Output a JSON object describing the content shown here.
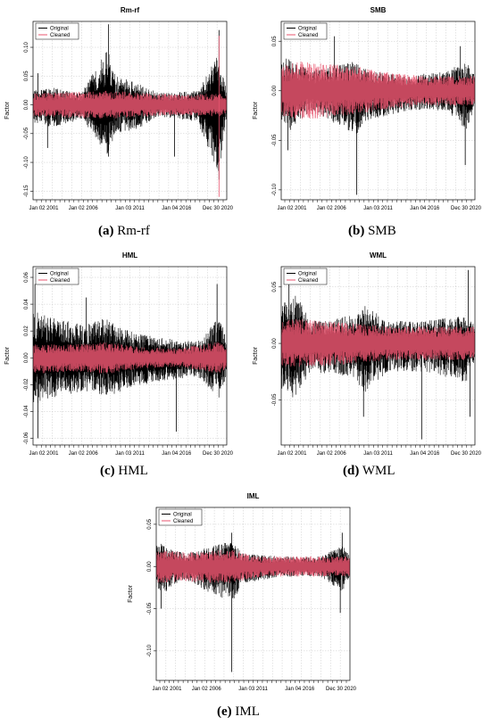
{
  "figure": {
    "legend": {
      "original": "Original",
      "cleaned": "Cleaned"
    },
    "captions": [
      {
        "letter": "(a)",
        "text": "Rm-rf"
      },
      {
        "letter": "(b)",
        "text": "SMB"
      },
      {
        "letter": "(c)",
        "text": "HML"
      },
      {
        "letter": "(d)",
        "text": "WML"
      },
      {
        "letter": "(e)",
        "text": "IML"
      }
    ]
  },
  "chart_data": [
    {
      "type": "line",
      "title": "Rm-rf",
      "ylabel": "Factor",
      "xlabel": "",
      "x_tick_labels": [
        "Jan 02 2001",
        "Jan 02 2006",
        "Jan 03 2011",
        "Jan 04 2016",
        "Dec 30 2020"
      ],
      "y_ticks": [
        0.1,
        0.05,
        0.0,
        -0.05,
        -0.1,
        -0.15
      ],
      "y_tick_labels": [
        "0.10",
        "0.05",
        "0.00",
        "-0.05",
        "-0.10",
        "-0.15"
      ],
      "ylim": [
        -0.165,
        0.145
      ],
      "xlim": [
        2001,
        2021
      ],
      "grid": true,
      "legend": "top-left",
      "series": [
        {
          "name": "Original",
          "color": "#000000",
          "envelope": [
            [
              2001,
              0.025,
              -0.03
            ],
            [
              2003,
              0.03,
              -0.04
            ],
            [
              2006,
              0.02,
              -0.025
            ],
            [
              2008.7,
              0.1,
              -0.09
            ],
            [
              2009.5,
              0.05,
              -0.05
            ],
            [
              2011.5,
              0.04,
              -0.045
            ],
            [
              2014,
              0.02,
              -0.02
            ],
            [
              2018,
              0.025,
              -0.03
            ],
            [
              2020.2,
              0.09,
              -0.12
            ],
            [
              2021,
              0.02,
              -0.02
            ]
          ],
          "spikes": [
            [
              2008.8,
              0.14
            ],
            [
              2008.8,
              -0.09
            ],
            [
              2020.2,
              0.13
            ],
            [
              2020.2,
              -0.13
            ],
            [
              2001.5,
              0.055
            ],
            [
              2002.5,
              -0.075
            ],
            [
              2015.6,
              -0.09
            ]
          ]
        },
        {
          "name": "Cleaned",
          "color": "#e8556f",
          "envelope": [
            [
              2001,
              0.02,
              -0.02
            ],
            [
              2004,
              0.022,
              -0.022
            ],
            [
              2008.7,
              0.025,
              -0.025
            ],
            [
              2011.5,
              0.022,
              -0.022
            ],
            [
              2016,
              0.018,
              -0.018
            ],
            [
              2020.2,
              0.02,
              -0.02
            ],
            [
              2021,
              0.018,
              -0.018
            ]
          ],
          "spikes": [
            [
              2020.2,
              -0.16
            ],
            [
              2020.2,
              0.12
            ]
          ]
        }
      ]
    },
    {
      "type": "line",
      "title": "SMB",
      "ylabel": "Factor",
      "xlabel": "",
      "x_tick_labels": [
        "Jan 02 2001",
        "Jan 02 2006",
        "Jan 03 2011",
        "Jan 04 2016",
        "Dec 30 2020"
      ],
      "y_ticks": [
        0.05,
        0.0,
        -0.05,
        -0.1
      ],
      "y_tick_labels": [
        "0.05",
        "0.00",
        "-0.05",
        "-0.10"
      ],
      "ylim": [
        -0.11,
        0.07
      ],
      "xlim": [
        2001,
        2021
      ],
      "grid": true,
      "legend": "top-left",
      "series": [
        {
          "name": "Original",
          "color": "#000000",
          "envelope": [
            [
              2001,
              0.03,
              -0.03
            ],
            [
              2002,
              0.035,
              -0.04
            ],
            [
              2004,
              0.02,
              -0.02
            ],
            [
              2008.7,
              0.03,
              -0.045
            ],
            [
              2010,
              0.02,
              -0.03
            ],
            [
              2014,
              0.015,
              -0.02
            ],
            [
              2018,
              0.02,
              -0.02
            ],
            [
              2020.2,
              0.03,
              -0.04
            ],
            [
              2021,
              0.015,
              -0.015
            ]
          ],
          "spikes": [
            [
              2008.8,
              -0.105
            ],
            [
              2001.7,
              -0.06
            ],
            [
              2020,
              -0.075
            ],
            [
              2006.5,
              0.055
            ],
            [
              2019.5,
              0.045
            ]
          ]
        },
        {
          "name": "Cleaned",
          "color": "#e8556f",
          "envelope": [
            [
              2001,
              0.025,
              -0.025
            ],
            [
              2003,
              0.03,
              -0.03
            ],
            [
              2008.7,
              0.025,
              -0.025
            ],
            [
              2011,
              0.02,
              -0.02
            ],
            [
              2016,
              0.015,
              -0.015
            ],
            [
              2021,
              0.015,
              -0.015
            ]
          ],
          "spikes": []
        }
      ]
    },
    {
      "type": "line",
      "title": "HML",
      "ylabel": "Factor",
      "xlabel": "",
      "x_tick_labels": [
        "Jan 02 2001",
        "Jan 02 2006",
        "Jan 03 2011",
        "Jan 04 2016",
        "Dec 30 2020"
      ],
      "y_ticks": [
        0.06,
        0.04,
        0.02,
        0.0,
        -0.02,
        -0.04,
        -0.06
      ],
      "y_tick_labels": [
        "0.06",
        "0.04",
        "0.02",
        "0.00",
        "-0.02",
        "-0.04",
        "-0.06"
      ],
      "ylim": [
        -0.065,
        0.068
      ],
      "xlim": [
        2001,
        2021
      ],
      "grid": true,
      "legend": "top-left",
      "series": [
        {
          "name": "Original",
          "color": "#000000",
          "envelope": [
            [
              2001,
              0.035,
              -0.035
            ],
            [
              2003,
              0.03,
              -0.03
            ],
            [
              2006,
              0.025,
              -0.025
            ],
            [
              2008.7,
              0.03,
              -0.03
            ],
            [
              2011,
              0.02,
              -0.022
            ],
            [
              2014,
              0.015,
              -0.018
            ],
            [
              2018,
              0.012,
              -0.014
            ],
            [
              2020.2,
              0.03,
              -0.03
            ],
            [
              2021,
              0.015,
              -0.015
            ]
          ],
          "spikes": [
            [
              2001.5,
              -0.06
            ],
            [
              2001.2,
              0.055
            ],
            [
              2020,
              0.055
            ],
            [
              2015.8,
              -0.055
            ],
            [
              2006.5,
              0.045
            ]
          ]
        },
        {
          "name": "Cleaned",
          "color": "#e8556f",
          "envelope": [
            [
              2001,
              0.01,
              -0.012
            ],
            [
              2005,
              0.01,
              -0.01
            ],
            [
              2008.7,
              0.012,
              -0.012
            ],
            [
              2012,
              0.008,
              -0.008
            ],
            [
              2016,
              0.007,
              -0.007
            ],
            [
              2020.2,
              0.012,
              -0.012
            ],
            [
              2021,
              0.008,
              -0.008
            ]
          ],
          "spikes": []
        }
      ]
    },
    {
      "type": "line",
      "title": "WML",
      "ylabel": "Factor",
      "xlabel": "",
      "x_tick_labels": [
        "Jan 02 2001",
        "Jan 02 2006",
        "Jan 03 2011",
        "Jan 04 2016",
        "Dec 30 2020"
      ],
      "y_ticks": [
        0.05,
        0.0,
        -0.05
      ],
      "y_tick_labels": [
        "0.05",
        "0.00",
        "-0.05"
      ],
      "ylim": [
        -0.09,
        0.068
      ],
      "xlim": [
        2001,
        2021
      ],
      "grid": true,
      "legend": "top-left",
      "series": [
        {
          "name": "Original",
          "color": "#000000",
          "envelope": [
            [
              2001,
              0.035,
              -0.04
            ],
            [
              2002.5,
              0.045,
              -0.05
            ],
            [
              2004,
              0.02,
              -0.025
            ],
            [
              2008.7,
              0.025,
              -0.03
            ],
            [
              2009.5,
              0.035,
              -0.045
            ],
            [
              2012,
              0.02,
              -0.025
            ],
            [
              2016,
              0.02,
              -0.025
            ],
            [
              2020.2,
              0.025,
              -0.035
            ],
            [
              2021,
              0.015,
              -0.015
            ]
          ],
          "spikes": [
            [
              2009.5,
              -0.065
            ],
            [
              2015.5,
              -0.085
            ],
            [
              2020.3,
              0.065
            ],
            [
              2020.5,
              -0.065
            ],
            [
              2001.8,
              0.055
            ]
          ]
        },
        {
          "name": "Cleaned",
          "color": "#e8556f",
          "envelope": [
            [
              2001,
              0.02,
              -0.02
            ],
            [
              2003,
              0.022,
              -0.022
            ],
            [
              2008.7,
              0.018,
              -0.018
            ],
            [
              2012,
              0.015,
              -0.015
            ],
            [
              2016,
              0.015,
              -0.015
            ],
            [
              2021,
              0.015,
              -0.015
            ]
          ],
          "spikes": []
        }
      ]
    },
    {
      "type": "line",
      "title": "IML",
      "ylabel": "Factor",
      "xlabel": "",
      "x_tick_labels": [
        "Jan 02 2001",
        "Jan 02 2006",
        "Jan 03 2011",
        "Jan 04 2016",
        "Dec 30 2020"
      ],
      "y_ticks": [
        0.05,
        0.0,
        -0.05,
        -0.1
      ],
      "y_tick_labels": [
        "0.05",
        "0.00",
        "-0.05",
        "-0.10"
      ],
      "ylim": [
        -0.135,
        0.07
      ],
      "xlim": [
        2001,
        2021
      ],
      "grid": true,
      "legend": "top-left",
      "series": [
        {
          "name": "Original",
          "color": "#000000",
          "envelope": [
            [
              2001,
              0.03,
              -0.03
            ],
            [
              2002,
              0.025,
              -0.03
            ],
            [
              2004,
              0.015,
              -0.015
            ],
            [
              2008.7,
              0.03,
              -0.045
            ],
            [
              2010,
              0.015,
              -0.02
            ],
            [
              2014,
              0.012,
              -0.012
            ],
            [
              2018,
              0.012,
              -0.012
            ],
            [
              2020.2,
              0.025,
              -0.03
            ],
            [
              2021,
              0.012,
              -0.012
            ]
          ],
          "spikes": [
            [
              2008.8,
              -0.125
            ],
            [
              2008.8,
              0.04
            ],
            [
              2001.5,
              -0.05
            ],
            [
              2020,
              -0.055
            ],
            [
              2020.2,
              0.04
            ]
          ]
        },
        {
          "name": "Cleaned",
          "color": "#e8556f",
          "envelope": [
            [
              2001,
              0.02,
              -0.02
            ],
            [
              2003,
              0.018,
              -0.018
            ],
            [
              2008.7,
              0.02,
              -0.02
            ],
            [
              2012,
              0.012,
              -0.012
            ],
            [
              2016,
              0.012,
              -0.012
            ],
            [
              2021,
              0.012,
              -0.012
            ]
          ],
          "spikes": []
        }
      ]
    }
  ]
}
